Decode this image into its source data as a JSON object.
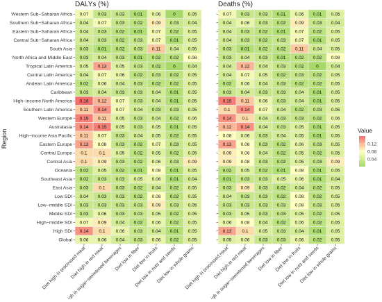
{
  "chart_data": {
    "type": "heatmap",
    "ylabel": "Region",
    "regions": [
      "Western Sub−Saharan Africa",
      "Southern Sub−Saharan Africa",
      "Eastern Sub−Saharan Africa",
      "Central Sub−Saharan Africa",
      "South Asia",
      "North Africa and Middle East",
      "Tropical Latin America",
      "Central Latin America",
      "Andean Latin America",
      "Caribbean",
      "High−income North America",
      "Southern Latin America",
      "Western Europe",
      "Australasia",
      "High−income Asia Pacific",
      "Eastern Europe",
      "Central Europe",
      "Central Asia",
      "Oceania",
      "Southeast Asia",
      "East Asia",
      "Low SDI",
      "Low−middle SDI",
      "Middle SDI",
      "High−middle SDI",
      "High SDI",
      "Global"
    ],
    "risks": [
      "Diet high in processed meat",
      "Diet high in red meat",
      "Diet high in sugar−sweetened beverages",
      "Diet low in fiber",
      "Diet low in fruits",
      "Diet low in nuts and seeds",
      "Diet low in whole grains"
    ],
    "panels": [
      {
        "title": "DALYs (%)",
        "values": [
          [
            0.07,
            0.03,
            0.03,
            0.01,
            0.06,
            0,
            0.05
          ],
          [
            0.04,
            0.07,
            0.03,
            0.02,
            0.09,
            0.03,
            0.04
          ],
          [
            0.04,
            0.03,
            0.02,
            0.01,
            0.07,
            0.02,
            0.05
          ],
          [
            0.04,
            0.03,
            0.02,
            0.03,
            0.07,
            0.01,
            0.05
          ],
          [
            0.03,
            0.01,
            0.02,
            0.03,
            0.11,
            0.04,
            0.05
          ],
          [
            0.03,
            0.04,
            0.03,
            0.01,
            0.02,
            0.02,
            0.08
          ],
          [
            0.05,
            0.13,
            0.05,
            0.03,
            0.02,
            0,
            0.04
          ],
          [
            0.04,
            0.07,
            0.06,
            0.02,
            0.03,
            0.02,
            0.05
          ],
          [
            0.02,
            0.06,
            0.04,
            0.03,
            0.02,
            0.02,
            0.05
          ],
          [
            0.03,
            0.04,
            0.03,
            0.03,
            0.04,
            0.01,
            0.05
          ],
          [
            0.16,
            0.12,
            0.07,
            0.03,
            0.04,
            0.01,
            0.05
          ],
          [
            0.11,
            0.14,
            0.07,
            0.04,
            0.03,
            0.03,
            0.05
          ],
          [
            0.15,
            0.11,
            0.05,
            0.03,
            0.04,
            0.02,
            0.06
          ],
          [
            0.14,
            0.15,
            0.05,
            0.03,
            0.05,
            0.01,
            0.05
          ],
          [
            0.11,
            0.07,
            0.03,
            0.04,
            0.05,
            0.02,
            0.05
          ],
          [
            0.13,
            0.08,
            0.03,
            0.02,
            0.07,
            0.03,
            0.05
          ],
          [
            0.1,
            0.1,
            0.05,
            0.02,
            0.05,
            0.02,
            0.05
          ],
          [
            0.1,
            0.09,
            0.03,
            0.02,
            0.06,
            0.03,
            0.09
          ],
          [
            0.02,
            0.05,
            0.02,
            0.01,
            0.08,
            0.01,
            0.05
          ],
          [
            0.02,
            0.03,
            0.03,
            0.05,
            0.06,
            0.01,
            0.04
          ],
          [
            0.03,
            0.1,
            0.03,
            0.02,
            0.04,
            0.02,
            0.05
          ],
          [
            0.04,
            0.03,
            0.03,
            0.02,
            0.08,
            0.02,
            0.05
          ],
          [
            0.03,
            0.03,
            0.03,
            0.03,
            0.09,
            0.03,
            0.05
          ],
          [
            0.03,
            0.06,
            0.03,
            0.03,
            0.05,
            0.02,
            0.05
          ],
          [
            0.07,
            0.09,
            0.04,
            0.02,
            0.06,
            0.02,
            0.05
          ],
          [
            0.14,
            0.1,
            0.06,
            0.03,
            0.04,
            0.01,
            0.05
          ],
          [
            0.06,
            0.06,
            0.04,
            0.03,
            0.06,
            0.02,
            0.05
          ]
        ]
      },
      {
        "title": "Deaths (%)",
        "values": [
          [
            0.07,
            0.03,
            0.03,
            0.01,
            0.06,
            0.01,
            0.05
          ],
          [
            0.04,
            0.06,
            0.03,
            0.02,
            0.09,
            0.03,
            0.04
          ],
          [
            0.04,
            0.03,
            0.02,
            0.01,
            0.07,
            0.02,
            0.05
          ],
          [
            0.04,
            0.03,
            0.02,
            0.03,
            0.07,
            0.01,
            0.05
          ],
          [
            0.03,
            0.01,
            0.02,
            0.02,
            0.11,
            0.04,
            0.05
          ],
          [
            0.03,
            0.04,
            0.03,
            0.01,
            0.02,
            0.02,
            0.08
          ],
          [
            0.04,
            0.12,
            0.04,
            0.03,
            0.02,
            0,
            0.04
          ],
          [
            0.04,
            0.07,
            0.05,
            0.02,
            0.03,
            0.02,
            0.05
          ],
          [
            0.02,
            0.06,
            0.04,
            0.03,
            0.02,
            0.02,
            0.05
          ],
          [
            0.03,
            0.04,
            0.03,
            0.03,
            0.04,
            0.01,
            0.05
          ],
          [
            0.15,
            0.11,
            0.06,
            0.03,
            0.04,
            0.01,
            0.05
          ],
          [
            0.1,
            0.14,
            0.07,
            0.04,
            0.02,
            0.03,
            0.05
          ],
          [
            0.14,
            0.1,
            0.04,
            0.03,
            0.03,
            0.02,
            0.06
          ],
          [
            0.12,
            0.14,
            0.04,
            0.03,
            0.05,
            0.01,
            0.05
          ],
          [
            0.08,
            0.06,
            0.03,
            0.04,
            0.05,
            0.01,
            0.05
          ],
          [
            0.13,
            0.08,
            0.03,
            0.02,
            0.06,
            0.03,
            0.05
          ],
          [
            0.09,
            0.08,
            0.04,
            0.02,
            0.05,
            0.02,
            0.05
          ],
          [
            0.09,
            0.08,
            0.03,
            0.02,
            0.05,
            0.03,
            0.09
          ],
          [
            0.02,
            0.05,
            0.02,
            0.01,
            0.08,
            0.01,
            0.05
          ],
          [
            0.01,
            0.03,
            0.03,
            0.05,
            0.06,
            0.01,
            0.04
          ],
          [
            0.03,
            0.09,
            0.03,
            0.02,
            0.04,
            0.02,
            0.05
          ],
          [
            0.04,
            0.03,
            0.03,
            0.02,
            0.08,
            0.02,
            0.05
          ],
          [
            0.03,
            0.03,
            0.03,
            0.03,
            0.08,
            0.03,
            0.05
          ],
          [
            0.03,
            0.05,
            0.03,
            0.03,
            0.05,
            0.02,
            0.05
          ],
          [
            0.06,
            0.08,
            0.04,
            0.02,
            0.06,
            0.02,
            0.05
          ],
          [
            0.13,
            0.1,
            0.05,
            0.03,
            0.04,
            0.01,
            0.05
          ],
          [
            0.05,
            0.06,
            0.03,
            0.03,
            0.06,
            0.02,
            0.05
          ]
        ]
      }
    ],
    "legend": {
      "title": "Value",
      "ticks": [
        0.12,
        0.08,
        0.04
      ],
      "range": [
        0,
        0.16
      ],
      "placement": "right"
    },
    "colors": {
      "low": "#a6d96a",
      "mid": "#ffffbf",
      "high": "#f46d6d",
      "panel_bg": "#ebebeb"
    }
  }
}
